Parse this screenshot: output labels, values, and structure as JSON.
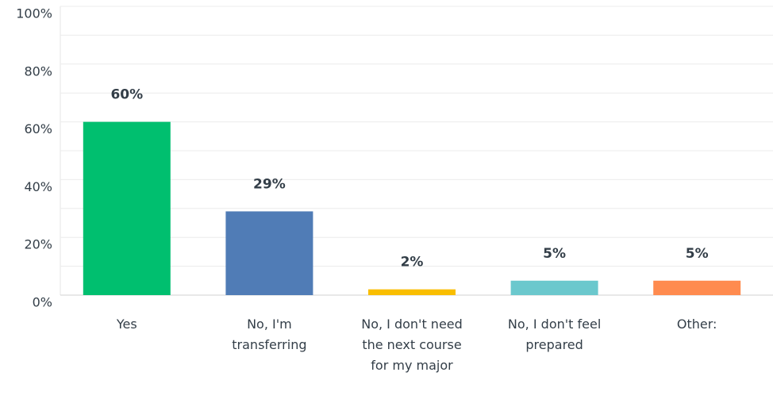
{
  "chart_data": {
    "type": "bar",
    "categories": [
      "Yes",
      "No, I'm transferring",
      "No, I don't need the next course for my major",
      "No, I don't feel prepared",
      "Other:"
    ],
    "values": [
      60,
      29,
      2,
      5,
      5
    ],
    "value_labels": [
      "60%",
      "29%",
      "2%",
      "5%",
      "5%"
    ],
    "colors": [
      "#00bf6f",
      "#507cb6",
      "#f9be00",
      "#6bc8cd",
      "#ff8b4f"
    ],
    "ylim": [
      0,
      100
    ],
    "yticks": [
      {
        "value": 0,
        "label": "0%"
      },
      {
        "value": 20,
        "label": "20%"
      },
      {
        "value": 40,
        "label": "40%"
      },
      {
        "value": 60,
        "label": "60%"
      },
      {
        "value": 80,
        "label": "80%"
      },
      {
        "value": 100,
        "label": "100%"
      }
    ],
    "minor_yticks": [
      10,
      30,
      50,
      70,
      90
    ],
    "grid": true
  }
}
